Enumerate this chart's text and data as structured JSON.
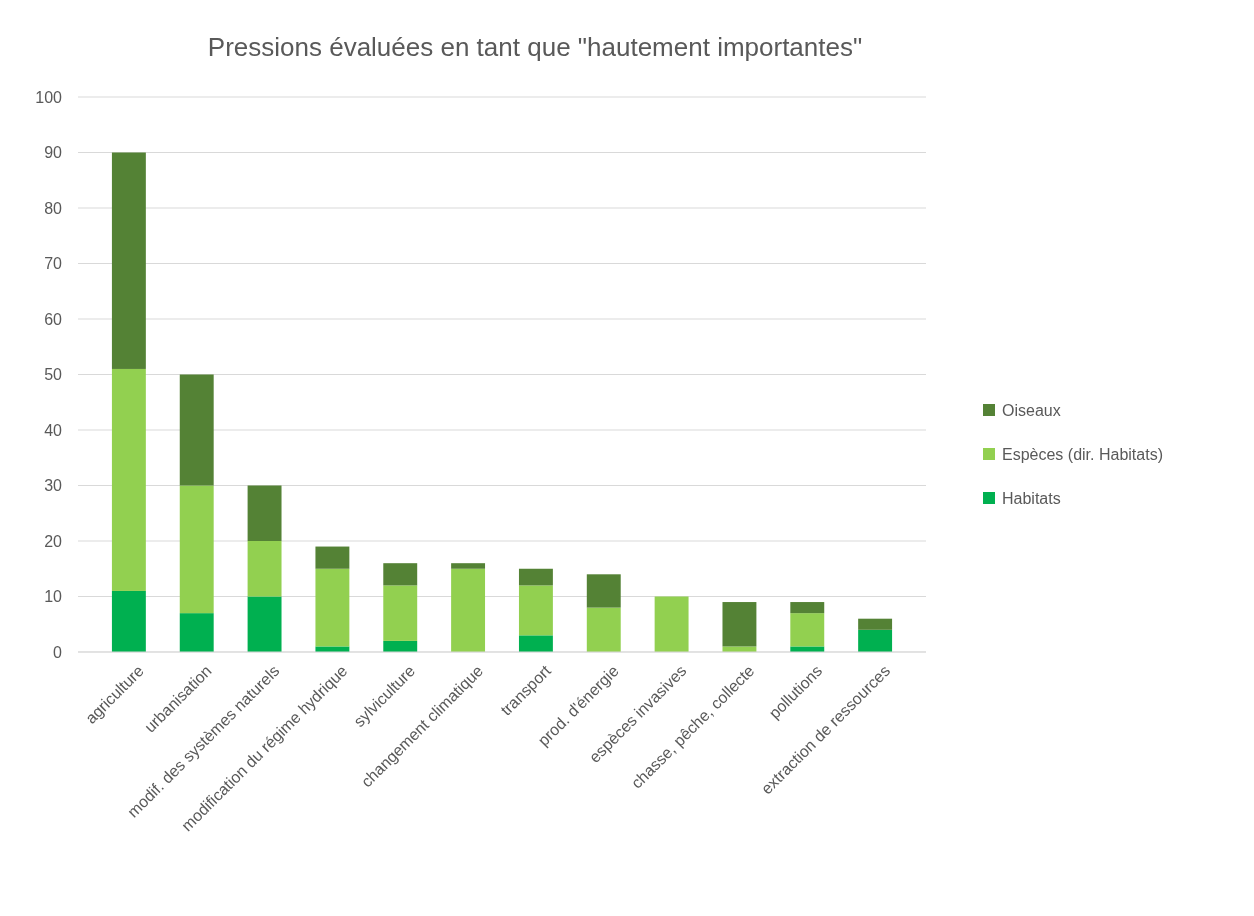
{
  "chart_data": {
    "type": "bar",
    "title": "Pressions évaluées en tant que \"hautement importantes\"",
    "categories": [
      "agriculture",
      "urbanisation",
      "modif. des systèmes naturels",
      "modification du régime hydrique",
      "sylviculture",
      "changement climatique",
      "transport",
      "prod. d'énergie",
      "espèces invasives",
      "chasse, pêche, collecte",
      "pollutions",
      "extraction de ressources"
    ],
    "stacked": true,
    "series": [
      {
        "name": "Habitats",
        "color": "#00b050",
        "values": [
          11,
          7,
          10,
          1,
          2,
          0,
          3,
          0,
          0,
          0,
          1,
          4
        ]
      },
      {
        "name": "Espèces (dir. Habitats)",
        "color": "#92d050",
        "values": [
          40,
          23,
          10,
          14,
          10,
          15,
          9,
          8,
          10,
          1,
          6,
          0
        ]
      },
      {
        "name": "Oiseaux",
        "color": "#548235",
        "values": [
          39,
          20,
          10,
          4,
          4,
          1,
          3,
          6,
          0,
          8,
          2,
          2
        ]
      }
    ],
    "ylim": [
      0,
      100
    ],
    "yticks": [
      0,
      10,
      20,
      30,
      40,
      50,
      60,
      70,
      80,
      90,
      100
    ],
    "grid": "y",
    "legend": "right"
  }
}
